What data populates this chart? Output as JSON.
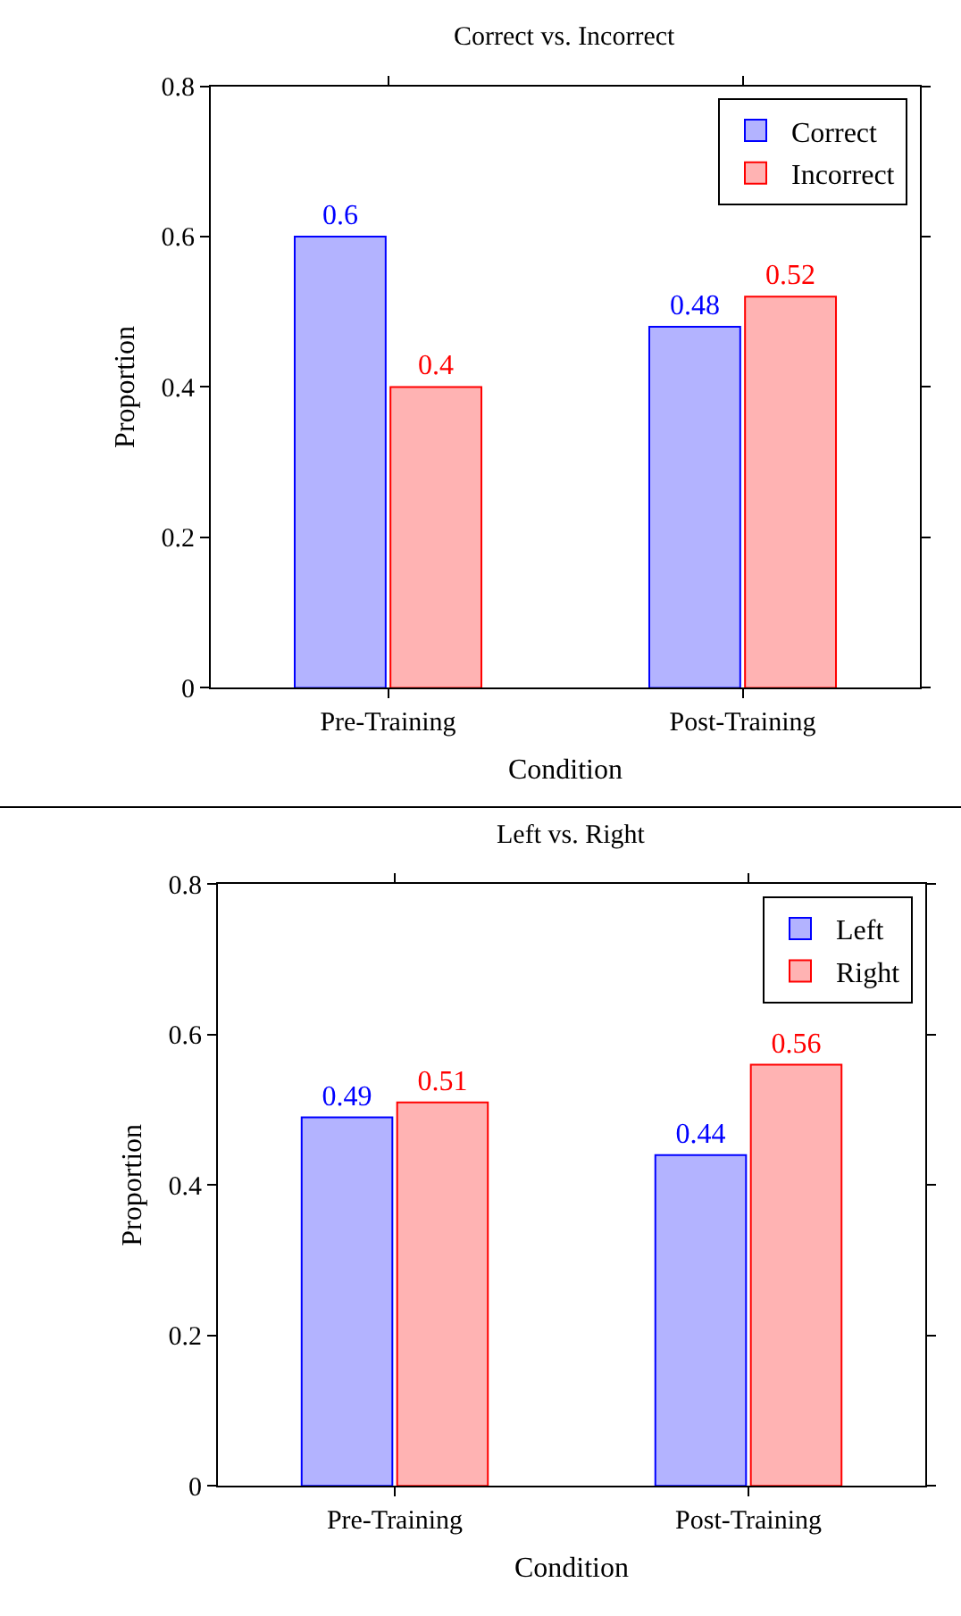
{
  "chart_data": [
    {
      "type": "bar",
      "title": "Correct vs. Incorrect",
      "xlabel": "Condition",
      "ylabel": "Proportion",
      "categories": [
        "Pre-Training",
        "Post-Training"
      ],
      "series": [
        {
          "name": "Correct",
          "color": "#b3b3ff",
          "values": [
            0.6,
            0.48
          ]
        },
        {
          "name": "Incorrect",
          "color": "#ffb3b3",
          "values": [
            0.4,
            0.52
          ]
        }
      ],
      "ylim": [
        0,
        0.8
      ],
      "yticks": [
        0,
        0.2,
        0.4,
        0.6,
        0.8
      ],
      "data_labels": true,
      "legend": "top right"
    },
    {
      "type": "bar",
      "title": "Left vs. Right",
      "xlabel": "Condition",
      "ylabel": "Proportion",
      "categories": [
        "Pre-Training",
        "Post-Training"
      ],
      "series": [
        {
          "name": "Left",
          "color": "#b3b3ff",
          "values": [
            0.49,
            0.44
          ]
        },
        {
          "name": "Right",
          "color": "#ffb3b3",
          "values": [
            0.51,
            0.56
          ]
        }
      ],
      "ylim": [
        0,
        0.8
      ],
      "yticks": [
        0,
        0.2,
        0.4,
        0.6,
        0.8
      ],
      "data_labels": true,
      "legend": "top right"
    }
  ]
}
